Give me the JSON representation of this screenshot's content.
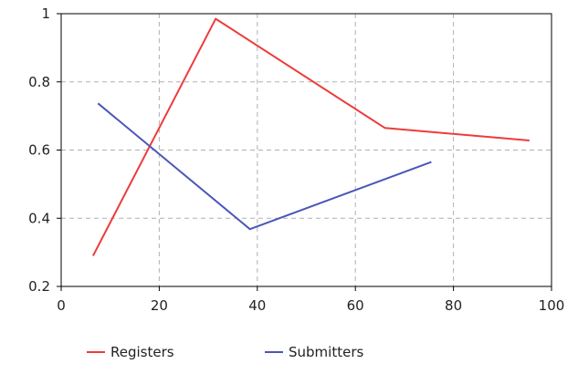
{
  "chart_data": {
    "type": "line",
    "xlim": [
      0,
      100
    ],
    "ylim": [
      0.2,
      1
    ],
    "xticks": [
      "0",
      "20",
      "40",
      "60",
      "80",
      "100"
    ],
    "yticks": [
      "0.2",
      "0.4",
      "0.6",
      "0.8",
      "1"
    ],
    "grid": true,
    "legend_position": "bottom",
    "series": [
      {
        "name": "Registers",
        "color": "#ee3b3b",
        "points": [
          [
            6.5,
            0.29
          ],
          [
            31.5,
            0.985
          ],
          [
            66,
            0.665
          ],
          [
            95.5,
            0.628
          ]
        ]
      },
      {
        "name": "Submitters",
        "color": "#4a56b8",
        "points": [
          [
            7.5,
            0.737
          ],
          [
            38.5,
            0.368
          ],
          [
            75.5,
            0.565
          ]
        ]
      }
    ]
  }
}
